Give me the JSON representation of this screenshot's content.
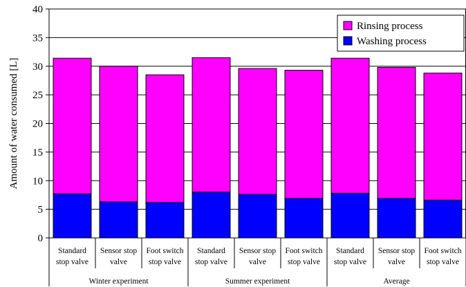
{
  "chart_data": {
    "type": "bar",
    "stacked": true,
    "ylabel": "Amount of water consumed [L]",
    "ylim": [
      0,
      40
    ],
    "yticks": [
      0,
      5,
      10,
      15,
      20,
      25,
      30,
      35,
      40
    ],
    "grid": "horizontal",
    "legend_position": "top-right",
    "groups": [
      {
        "label": "Winter experiment",
        "categories": [
          [
            "Standard",
            "stop valve"
          ],
          [
            "Sensor stop",
            "valve"
          ],
          [
            "Foot switch",
            "stop valve"
          ]
        ]
      },
      {
        "label": "Summer experiment",
        "categories": [
          [
            "Standard",
            "stop valve"
          ],
          [
            "Sensor stop",
            "valve"
          ],
          [
            "Foot switch",
            "stop valve"
          ]
        ]
      },
      {
        "label": "Average",
        "categories": [
          [
            "Standard",
            "stop valve"
          ],
          [
            "Sensor stop",
            "valve"
          ],
          [
            "Foot switch",
            "stop valve"
          ]
        ]
      }
    ],
    "series": [
      {
        "name": "Washing process",
        "color": "#0000FF",
        "values": [
          7.7,
          6.3,
          6.2,
          8.0,
          7.6,
          6.9,
          7.8,
          6.9,
          6.6
        ]
      },
      {
        "name": "Rinsing process",
        "color": "#FF00FF",
        "values": [
          23.7,
          23.7,
          22.3,
          23.5,
          22.0,
          22.4,
          23.6,
          22.9,
          22.2
        ]
      }
    ],
    "legend_order": [
      "Rinsing process",
      "Washing process"
    ]
  }
}
